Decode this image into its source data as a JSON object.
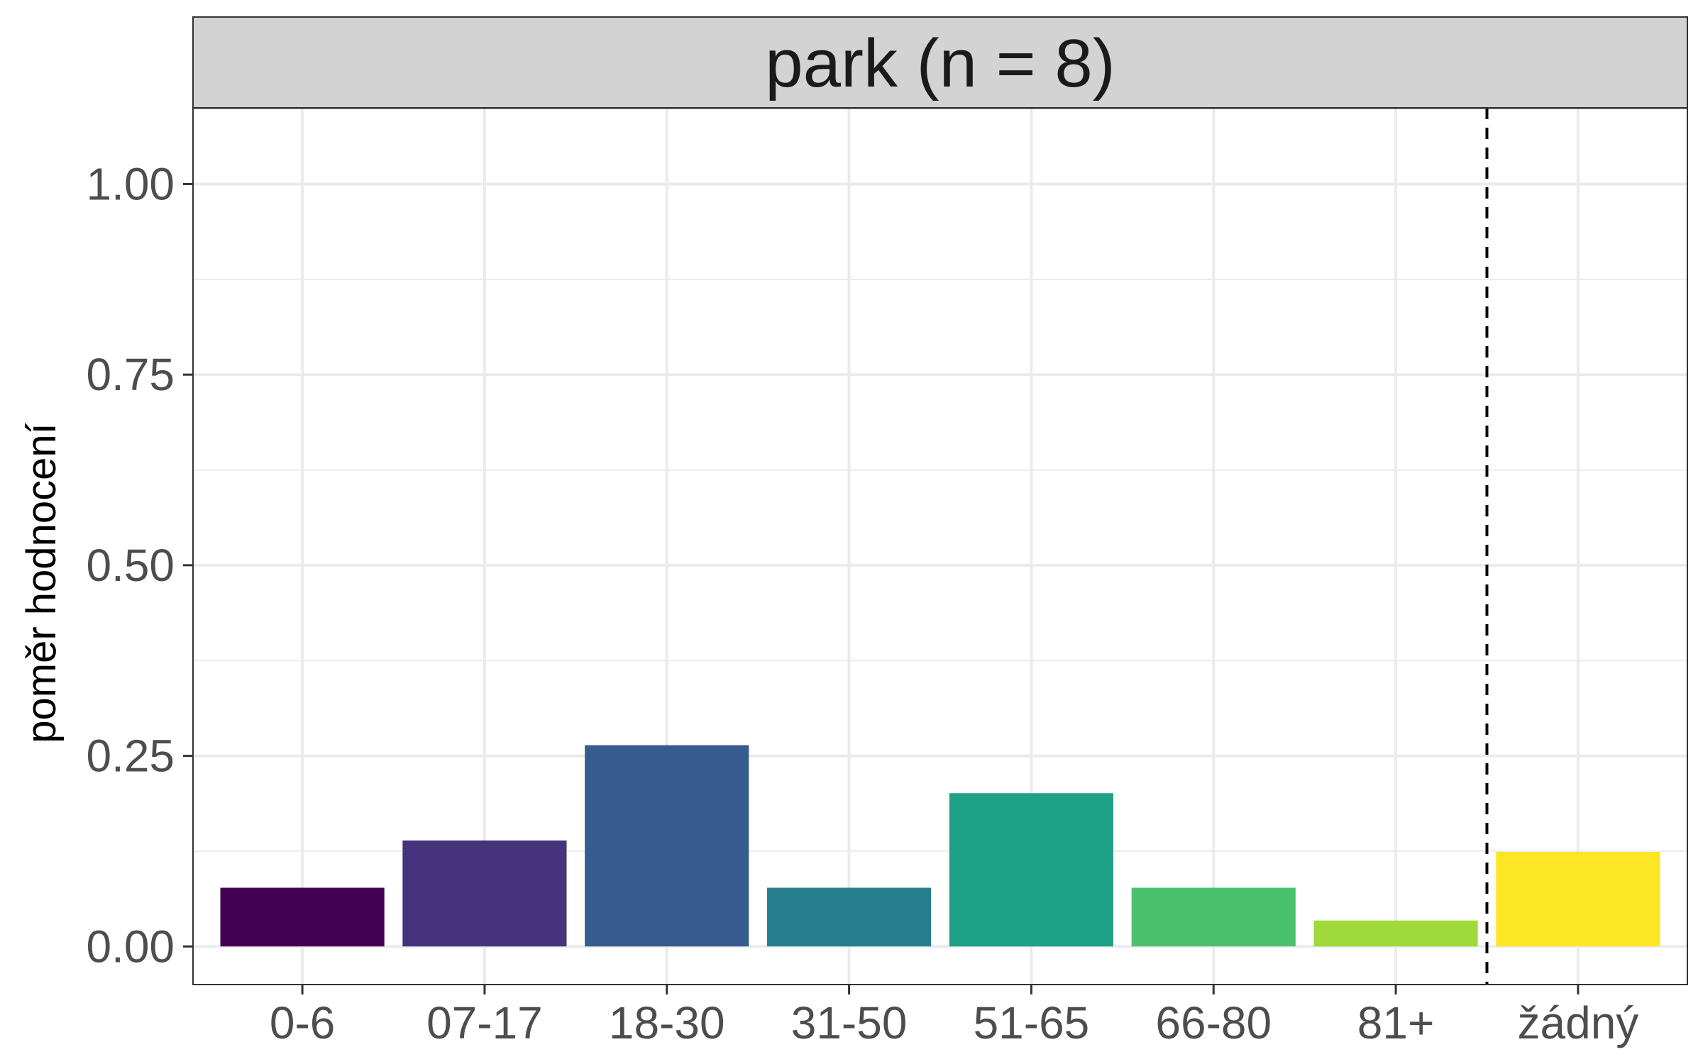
{
  "chart_data": {
    "type": "bar",
    "facet_title": "park (n = 8)",
    "ylabel": "poměr hodnocení",
    "xlabel": "",
    "categories": [
      "0-6",
      "07-17",
      "18-30",
      "31-50",
      "51-65",
      "66-80",
      "81+",
      "žádný"
    ],
    "values": [
      0.077,
      0.139,
      0.264,
      0.077,
      0.201,
      0.077,
      0.034,
      0.124
    ],
    "colors": [
      "#440154",
      "#46337E",
      "#365C8D",
      "#277F8E",
      "#1FA187",
      "#4AC16D",
      "#9FDA3A",
      "#FDE725"
    ],
    "ylim": [
      -0.05,
      1.1
    ],
    "yticks": [
      0.0,
      0.25,
      0.5,
      0.75,
      1.0
    ],
    "ytick_labels": [
      "0.00",
      "0.25",
      "0.50",
      "0.75",
      "1.00"
    ],
    "grid": true,
    "separator_after_category": "81+",
    "separator_style": "dashed"
  }
}
